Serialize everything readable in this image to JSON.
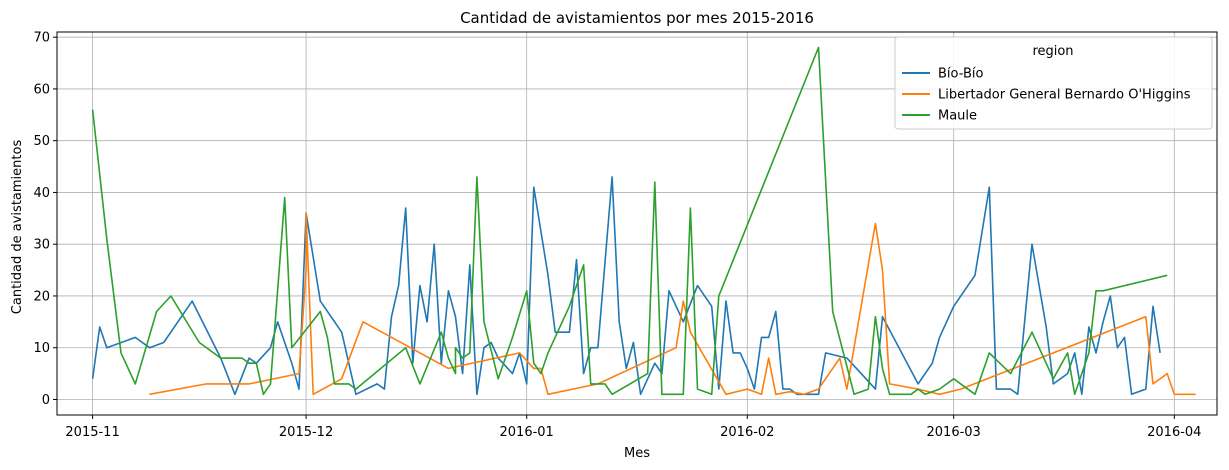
{
  "chart_data": {
    "type": "line",
    "title": "Cantidad de avistamientos por mes 2015-2016",
    "xlabel": "Mes",
    "ylabel": "Cantidad de avistamientos",
    "xlim": [
      "2015-10-27",
      "2016-04-07"
    ],
    "ylim": [
      -3,
      71
    ],
    "x_ticks": [
      "2015-11-01",
      "2015-12-01",
      "2016-01-01",
      "2016-02-01",
      "2016-03-01",
      "2016-04-01"
    ],
    "x_tick_labels": [
      "2015-11",
      "2015-12",
      "2016-01",
      "2016-02",
      "2016-03",
      "2016-04"
    ],
    "y_ticks": [
      0,
      10,
      20,
      30,
      40,
      50,
      60,
      70
    ],
    "grid": true,
    "legend": {
      "title": "region",
      "placement": "top-right"
    },
    "series": [
      {
        "name": "Bío-Bío",
        "color": "#1f77b4",
        "points": [
          [
            "2015-11-01",
            4
          ],
          [
            "2015-11-02",
            14
          ],
          [
            "2015-11-03",
            10
          ],
          [
            "2015-11-07",
            12
          ],
          [
            "2015-11-09",
            10
          ],
          [
            "2015-11-11",
            11
          ],
          [
            "2015-11-15",
            19
          ],
          [
            "2015-11-19",
            8
          ],
          [
            "2015-11-21",
            1
          ],
          [
            "2015-11-23",
            8
          ],
          [
            "2015-11-24",
            7
          ],
          [
            "2015-11-26",
            10
          ],
          [
            "2015-11-27",
            15
          ],
          [
            "2015-11-29",
            7
          ],
          [
            "2015-11-30",
            2
          ],
          [
            "2015-12-01",
            36
          ],
          [
            "2015-12-03",
            19
          ],
          [
            "2015-12-06",
            13
          ],
          [
            "2015-12-08",
            1
          ],
          [
            "2015-12-11",
            3
          ],
          [
            "2015-12-12",
            2
          ],
          [
            "2015-12-13",
            16
          ],
          [
            "2015-12-14",
            22
          ],
          [
            "2015-12-15",
            37
          ],
          [
            "2015-12-16",
            7
          ],
          [
            "2015-12-17",
            22
          ],
          [
            "2015-12-18",
            15
          ],
          [
            "2015-12-19",
            30
          ],
          [
            "2015-12-20",
            7
          ],
          [
            "2015-12-21",
            21
          ],
          [
            "2015-12-22",
            16
          ],
          [
            "2015-12-23",
            5
          ],
          [
            "2015-12-24",
            26
          ],
          [
            "2015-12-25",
            1
          ],
          [
            "2015-12-26",
            10
          ],
          [
            "2015-12-27",
            11
          ],
          [
            "2015-12-28",
            8
          ],
          [
            "2015-12-30",
            5
          ],
          [
            "2015-12-31",
            9
          ],
          [
            "2016-01-01",
            3
          ],
          [
            "2016-01-02",
            41
          ],
          [
            "2016-01-04",
            24
          ],
          [
            "2016-01-05",
            13
          ],
          [
            "2016-01-07",
            13
          ],
          [
            "2016-01-08",
            27
          ],
          [
            "2016-01-09",
            5
          ],
          [
            "2016-01-10",
            10
          ],
          [
            "2016-01-11",
            10
          ],
          [
            "2016-01-13",
            43
          ],
          [
            "2016-01-14",
            15
          ],
          [
            "2016-01-15",
            6
          ],
          [
            "2016-01-16",
            11
          ],
          [
            "2016-01-17",
            1
          ],
          [
            "2016-01-19",
            7
          ],
          [
            "2016-01-20",
            5
          ],
          [
            "2016-01-21",
            21
          ],
          [
            "2016-01-23",
            15
          ],
          [
            "2016-01-25",
            22
          ],
          [
            "2016-01-27",
            18
          ],
          [
            "2016-01-28",
            2
          ],
          [
            "2016-01-29",
            19
          ],
          [
            "2016-01-30",
            9
          ],
          [
            "2016-01-31",
            9
          ],
          [
            "2016-02-01",
            6
          ],
          [
            "2016-02-02",
            2
          ],
          [
            "2016-02-03",
            12
          ],
          [
            "2016-02-04",
            12
          ],
          [
            "2016-02-05",
            17
          ],
          [
            "2016-02-06",
            2
          ],
          [
            "2016-02-07",
            2
          ],
          [
            "2016-02-08",
            1
          ],
          [
            "2016-02-11",
            1
          ],
          [
            "2016-02-12",
            9
          ],
          [
            "2016-02-15",
            8
          ],
          [
            "2016-02-17",
            5
          ],
          [
            "2016-02-19",
            2
          ],
          [
            "2016-02-20",
            16
          ],
          [
            "2016-02-25",
            3
          ],
          [
            "2016-02-27",
            7
          ],
          [
            "2016-02-28",
            12
          ],
          [
            "2016-03-01",
            18
          ],
          [
            "2016-03-04",
            24
          ],
          [
            "2016-03-06",
            41
          ],
          [
            "2016-03-07",
            2
          ],
          [
            "2016-03-09",
            2
          ],
          [
            "2016-03-10",
            1
          ],
          [
            "2016-03-12",
            30
          ],
          [
            "2016-03-14",
            14
          ],
          [
            "2016-03-15",
            3
          ],
          [
            "2016-03-17",
            5
          ],
          [
            "2016-03-18",
            9
          ],
          [
            "2016-03-19",
            1
          ],
          [
            "2016-03-20",
            14
          ],
          [
            "2016-03-21",
            9
          ],
          [
            "2016-03-22",
            15
          ],
          [
            "2016-03-23",
            20
          ],
          [
            "2016-03-24",
            10
          ],
          [
            "2016-03-25",
            12
          ],
          [
            "2016-03-26",
            1
          ],
          [
            "2016-03-28",
            2
          ],
          [
            "2016-03-29",
            18
          ],
          [
            "2016-03-30",
            9
          ]
        ]
      },
      {
        "name": "Libertador General Bernardo O'Higgins",
        "color": "#ff7f0e",
        "points": [
          [
            "2015-11-09",
            1
          ],
          [
            "2015-11-17",
            3
          ],
          [
            "2015-11-23",
            3
          ],
          [
            "2015-11-30",
            5
          ],
          [
            "2015-12-01",
            25
          ],
          [
            "2015-12-01",
            36
          ],
          [
            "2015-12-02",
            1
          ],
          [
            "2015-12-06",
            4
          ],
          [
            "2015-12-09",
            15
          ],
          [
            "2015-12-21",
            6
          ],
          [
            "2015-12-31",
            9
          ],
          [
            "2016-01-02",
            6
          ],
          [
            "2016-01-03",
            6
          ],
          [
            "2016-01-04",
            1
          ],
          [
            "2016-01-11",
            3
          ],
          [
            "2016-01-22",
            10
          ],
          [
            "2016-01-23",
            19
          ],
          [
            "2016-01-24",
            13
          ],
          [
            "2016-01-29",
            1
          ],
          [
            "2016-02-01",
            2
          ],
          [
            "2016-02-03",
            1
          ],
          [
            "2016-02-04",
            8
          ],
          [
            "2016-02-05",
            1
          ],
          [
            "2016-02-07",
            1.5
          ],
          [
            "2016-02-09",
            1
          ],
          [
            "2016-02-11",
            2
          ],
          [
            "2016-02-14",
            8
          ],
          [
            "2016-02-15",
            2
          ],
          [
            "2016-02-19",
            34
          ],
          [
            "2016-02-20",
            25
          ],
          [
            "2016-02-21",
            3
          ],
          [
            "2016-02-25",
            2
          ],
          [
            "2016-02-28",
            1
          ],
          [
            "2016-03-02",
            2
          ],
          [
            "2016-03-28",
            16
          ],
          [
            "2016-03-29",
            3
          ],
          [
            "2016-03-31",
            5
          ],
          [
            "2016-04-01",
            1
          ],
          [
            "2016-04-04",
            1
          ]
        ]
      },
      {
        "name": "Maule",
        "color": "#2ca02c",
        "points": [
          [
            "2015-11-01",
            56
          ],
          [
            "2015-11-03",
            31
          ],
          [
            "2015-11-05",
            9
          ],
          [
            "2015-11-07",
            3
          ],
          [
            "2015-11-10",
            17
          ],
          [
            "2015-11-12",
            20
          ],
          [
            "2015-11-16",
            11
          ],
          [
            "2015-11-19",
            8
          ],
          [
            "2015-11-22",
            8
          ],
          [
            "2015-11-23",
            7
          ],
          [
            "2015-11-24",
            7
          ],
          [
            "2015-11-25",
            1
          ],
          [
            "2015-11-26",
            3
          ],
          [
            "2015-11-28",
            39
          ],
          [
            "2015-11-29",
            10
          ],
          [
            "2015-12-03",
            17
          ],
          [
            "2015-12-04",
            12
          ],
          [
            "2015-12-05",
            3
          ],
          [
            "2015-12-07",
            3
          ],
          [
            "2015-12-08",
            2
          ],
          [
            "2015-12-15",
            10
          ],
          [
            "2015-12-17",
            3
          ],
          [
            "2015-12-20",
            13
          ],
          [
            "2015-12-21",
            8
          ],
          [
            "2015-12-22",
            5
          ],
          [
            "2015-12-22",
            10
          ],
          [
            "2015-12-23",
            8
          ],
          [
            "2015-12-24",
            9
          ],
          [
            "2015-12-25",
            43
          ],
          [
            "2015-12-26",
            15
          ],
          [
            "2015-12-28",
            4
          ],
          [
            "2015-12-30",
            12
          ],
          [
            "2016-01-01",
            21
          ],
          [
            "2016-01-02",
            7
          ],
          [
            "2016-01-03",
            5
          ],
          [
            "2016-01-04",
            9
          ],
          [
            "2016-01-07",
            18
          ],
          [
            "2016-01-09",
            26
          ],
          [
            "2016-01-10",
            3
          ],
          [
            "2016-01-12",
            3
          ],
          [
            "2016-01-13",
            1
          ],
          [
            "2016-01-18",
            5
          ],
          [
            "2016-01-19",
            42
          ],
          [
            "2016-01-20",
            1
          ],
          [
            "2016-01-23",
            1
          ],
          [
            "2016-01-24",
            37
          ],
          [
            "2016-01-25",
            2
          ],
          [
            "2016-01-27",
            1
          ],
          [
            "2016-01-28",
            20
          ],
          [
            "2016-02-11",
            68
          ],
          [
            "2016-02-13",
            17
          ],
          [
            "2016-02-16",
            1
          ],
          [
            "2016-02-18",
            2
          ],
          [
            "2016-02-19",
            16
          ],
          [
            "2016-02-20",
            6
          ],
          [
            "2016-02-21",
            1
          ],
          [
            "2016-02-24",
            1
          ],
          [
            "2016-02-25",
            2
          ],
          [
            "2016-02-26",
            1
          ],
          [
            "2016-02-28",
            2
          ],
          [
            "2016-03-01",
            4
          ],
          [
            "2016-03-04",
            1
          ],
          [
            "2016-03-06",
            9
          ],
          [
            "2016-03-09",
            5
          ],
          [
            "2016-03-12",
            13
          ],
          [
            "2016-03-15",
            4
          ],
          [
            "2016-03-17",
            9
          ],
          [
            "2016-03-18",
            1
          ],
          [
            "2016-03-20",
            9
          ],
          [
            "2016-03-21",
            21
          ],
          [
            "2016-03-22",
            21
          ],
          [
            "2016-03-31",
            24
          ]
        ]
      }
    ]
  }
}
